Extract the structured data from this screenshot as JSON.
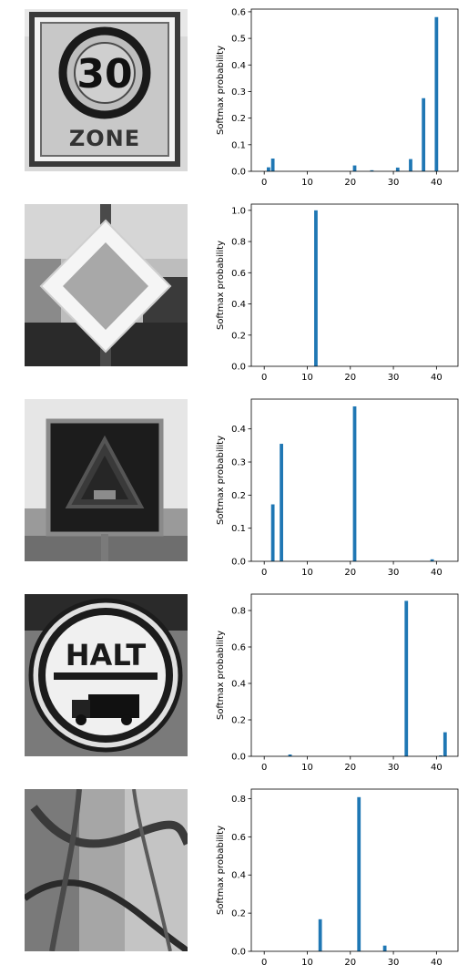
{
  "chart_data": [
    {
      "type": "bar",
      "image": "speed-limit-30-zone-sign",
      "sign_text": "30",
      "sign_subtext": "ZONE",
      "ylabel": "Softmax probability",
      "xlim": [
        -3,
        45
      ],
      "ylim": [
        0,
        0.61
      ],
      "xticks": [
        0,
        10,
        20,
        30,
        40
      ],
      "yticks": [
        0.0,
        0.1,
        0.2,
        0.3,
        0.4,
        0.5,
        0.6
      ],
      "ytick_labels": [
        "0.0",
        "0.1",
        "0.2",
        "0.3",
        "0.4",
        "0.5",
        "0.6"
      ],
      "bars": [
        {
          "x": 1,
          "y": 0.015
        },
        {
          "x": 2,
          "y": 0.048
        },
        {
          "x": 21,
          "y": 0.022
        },
        {
          "x": 25,
          "y": 0.004
        },
        {
          "x": 31,
          "y": 0.014
        },
        {
          "x": 34,
          "y": 0.046
        },
        {
          "x": 37,
          "y": 0.275
        },
        {
          "x": 40,
          "y": 0.58
        }
      ]
    },
    {
      "type": "bar",
      "image": "priority-road-sign",
      "ylabel": "Softmax probability",
      "xlim": [
        -3,
        45
      ],
      "ylim": [
        0,
        1.04
      ],
      "xticks": [
        0,
        10,
        20,
        30,
        40
      ],
      "yticks": [
        0.0,
        0.2,
        0.4,
        0.6,
        0.8,
        1.0
      ],
      "ytick_labels": [
        "0.0",
        "0.2",
        "0.4",
        "0.6",
        "0.8",
        "1.0"
      ],
      "bars": [
        {
          "x": 12,
          "y": 1.0
        }
      ]
    },
    {
      "type": "bar",
      "image": "warning-triangle-sign",
      "ylabel": "Softmax probability",
      "xlim": [
        -3,
        45
      ],
      "ylim": [
        0,
        0.49
      ],
      "xticks": [
        0,
        10,
        20,
        30,
        40
      ],
      "yticks": [
        0.0,
        0.1,
        0.2,
        0.3,
        0.4
      ],
      "ytick_labels": [
        "0.0",
        "0.1",
        "0.2",
        "0.3",
        "0.4"
      ],
      "bars": [
        {
          "x": 2,
          "y": 0.172
        },
        {
          "x": 4,
          "y": 0.355
        },
        {
          "x": 21,
          "y": 0.468
        },
        {
          "x": 39,
          "y": 0.006
        }
      ]
    },
    {
      "type": "bar",
      "image": "halt-truck-prohibition-sign",
      "sign_text": "HALT",
      "ylabel": "Softmax probability",
      "xlim": [
        -3,
        45
      ],
      "ylim": [
        0,
        0.89
      ],
      "xticks": [
        0,
        10,
        20,
        30,
        40
      ],
      "yticks": [
        0.0,
        0.2,
        0.4,
        0.6,
        0.8
      ],
      "ytick_labels": [
        "0.0",
        "0.2",
        "0.4",
        "0.6",
        "0.8"
      ],
      "bars": [
        {
          "x": 6,
          "y": 0.01
        },
        {
          "x": 33,
          "y": 0.853
        },
        {
          "x": 41,
          "y": 0.005
        },
        {
          "x": 42,
          "y": 0.132
        }
      ]
    },
    {
      "type": "bar",
      "image": "closeup-bark-branches",
      "ylabel": "Softmax probability",
      "xlim": [
        -3,
        45
      ],
      "ylim": [
        0,
        0.85
      ],
      "xticks": [
        0,
        10,
        20,
        30,
        40
      ],
      "yticks": [
        0.0,
        0.2,
        0.4,
        0.6,
        0.8
      ],
      "ytick_labels": [
        "0.0",
        "0.2",
        "0.4",
        "0.6",
        "0.8"
      ],
      "bars": [
        {
          "x": 13,
          "y": 0.168
        },
        {
          "x": 22,
          "y": 0.808
        },
        {
          "x": 28,
          "y": 0.03
        }
      ]
    }
  ],
  "colors": {
    "bar": "#1f77b4",
    "axis": "#000000",
    "text": "#000000"
  }
}
